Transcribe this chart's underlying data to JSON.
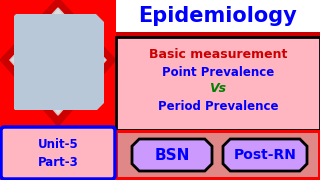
{
  "bg_color": "#ff0000",
  "title_text": "Epidemiology",
  "title_color": "#0000ff",
  "title_bg": "#ffffff",
  "content_bg": "#ffb6c1",
  "content_border": "#000000",
  "line1": "Basic measurement",
  "line1_color": "#cc0000",
  "line2": "Point Prevalence",
  "line2_color": "#0000ff",
  "line3": "Vs",
  "line3_color": "#008000",
  "line4": "Period Prevalence",
  "line4_color": "#0000ff",
  "unit_box_bg": "#ffb6c1",
  "unit_box_border": "#0000ff",
  "unit_text": "Unit-5\nPart-3",
  "unit_text_color": "#0000ff",
  "bsn_text": "BSN",
  "posrn_text": "Post-RN",
  "badge_bg": "#cc99ff",
  "badge_text_color": "#0000ff",
  "badge_border": "#000000",
  "photo_bg": "#b8c8d8",
  "diamond_color": "#ff0000",
  "diamond_border": "#cc0000",
  "thin_red_bar_color": "#cc0000",
  "bottom_strip_bg": "#e08080"
}
